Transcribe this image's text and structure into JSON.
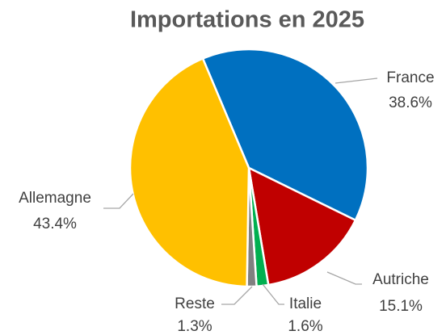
{
  "chart_data": {
    "type": "pie",
    "title": "Importations en 2025",
    "categories": [
      "France",
      "Autriche",
      "Italie",
      "Reste",
      "Allemagne"
    ],
    "values": [
      38.6,
      15.1,
      1.6,
      1.3,
      43.4
    ],
    "value_labels": [
      "38.6%",
      "15.1%",
      "1.6%",
      "1.3%",
      "43.4%"
    ],
    "colors": [
      "#0070c0",
      "#c00000",
      "#00b050",
      "#808080",
      "#ffc000"
    ]
  }
}
